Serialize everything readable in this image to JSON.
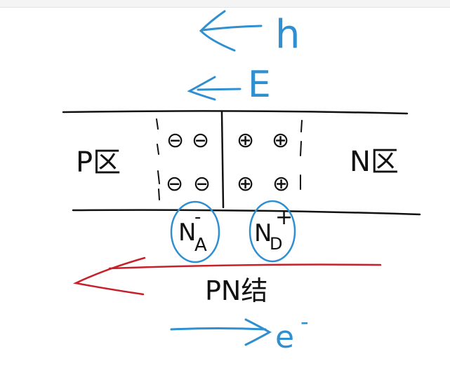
{
  "diagram": {
    "arrow_h_label": "h",
    "arrow_E_label": "E",
    "p_region_label": "P区",
    "n_region_label": "N区",
    "acceptor_label": "N",
    "acceptor_sub": "A",
    "acceptor_sup": "-",
    "donor_label": "N",
    "donor_sub": "D",
    "donor_sup": "+",
    "junction_label": "PN结",
    "electron_label": "e",
    "electron_sup": "-",
    "negative_ions": [
      "⊖",
      "⊖",
      "⊖",
      "⊖"
    ],
    "positive_ions": [
      "⊕",
      "⊕",
      "⊕",
      "⊕"
    ]
  },
  "colors": {
    "ink": "#111111",
    "blue": "#2f8fd0",
    "red": "#c8202a"
  }
}
